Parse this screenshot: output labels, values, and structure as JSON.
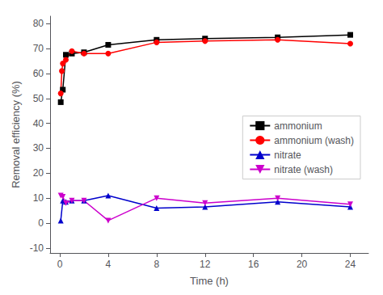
{
  "chart_data": {
    "type": "line",
    "xlabel": "Time (h)",
    "ylabel": "Removal efficiency (%)",
    "series": [
      {
        "name": "ammonium",
        "color": "#000000",
        "marker": "square",
        "x": [
          0.08,
          0.25,
          0.5,
          1,
          2,
          4,
          8,
          12,
          18,
          24
        ],
        "values": [
          48.5,
          53.5,
          67.5,
          68,
          68.5,
          71.5,
          73.5,
          74,
          74.5,
          75.5
        ]
      },
      {
        "name": "ammonium (wash)",
        "color": "#ff0000",
        "marker": "circle",
        "x": [
          0.08,
          0.17,
          0.25,
          0.5,
          1,
          2,
          4,
          8,
          12,
          18,
          24
        ],
        "values": [
          52,
          61,
          64,
          65.5,
          69,
          68,
          68,
          72.5,
          73,
          73.5,
          72
        ]
      },
      {
        "name": "nitrate",
        "color": "#0000cc",
        "marker": "triangle-up",
        "x": [
          0.08,
          0.25,
          0.5,
          1,
          2,
          4,
          8,
          12,
          18,
          24
        ],
        "values": [
          1,
          9,
          8.5,
          9,
          9,
          11,
          6,
          6.5,
          8.5,
          6.5
        ]
      },
      {
        "name": "nitrate (wash)",
        "color": "#cc00cc",
        "marker": "triangle-down",
        "x": [
          0.08,
          0.25,
          0.5,
          1,
          2,
          4,
          8,
          12,
          18,
          24
        ],
        "values": [
          11,
          10.5,
          8,
          9,
          9,
          1,
          10,
          8,
          10,
          7.5
        ]
      }
    ],
    "xlim": [
      -0.8,
      25.5
    ],
    "ylim": [
      -12,
      83
    ],
    "xticks": [
      0,
      4,
      8,
      12,
      16,
      20,
      24
    ],
    "yticks": [
      -10,
      0,
      10,
      20,
      30,
      40,
      50,
      60,
      70,
      80
    ],
    "grid": false,
    "legend": "right"
  }
}
